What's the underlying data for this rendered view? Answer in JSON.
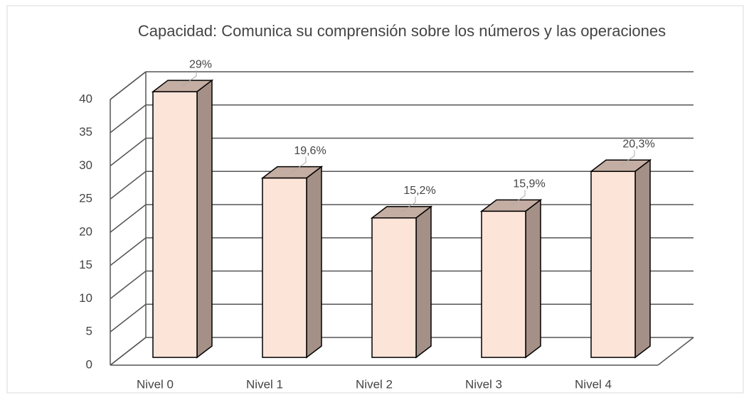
{
  "chart_data": {
    "type": "bar3d",
    "title": "Capacidad: Comunica su comprensión sobre los números y las operaciones",
    "categories": [
      "Nivel 0",
      "Nivel 1",
      "Nivel 2",
      "Nivel 3",
      "Nivel 4"
    ],
    "values": [
      40,
      27,
      21,
      22,
      28
    ],
    "value_labels": [
      "29%",
      "19,6%",
      "15,2%",
      "15,9%",
      "20,3%"
    ],
    "color": "#fde4d8",
    "ylim": [
      0,
      40
    ],
    "yticks": [
      0,
      5,
      10,
      15,
      20,
      25,
      30,
      35,
      40
    ],
    "grid": true
  }
}
